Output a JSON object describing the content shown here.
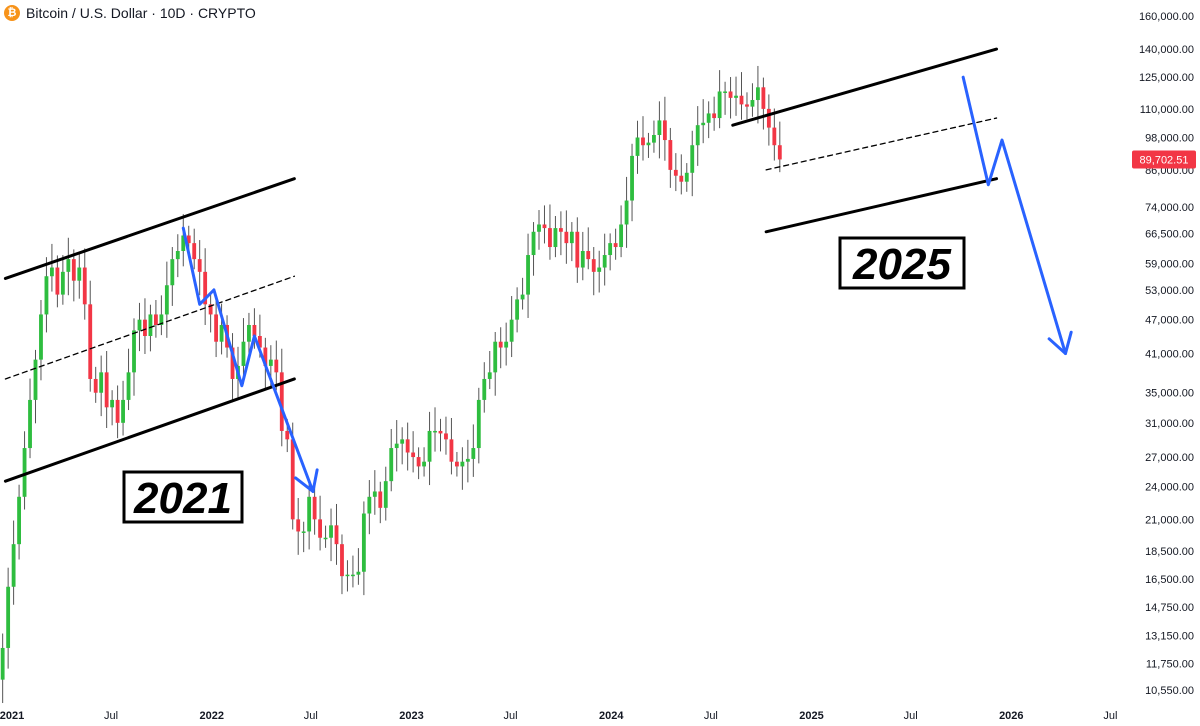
{
  "header": {
    "symbol": "Bitcoin",
    "quote": "U.S. Dollar",
    "interval": "10D",
    "exchange": "CRYPTO",
    "title": "Bitcoin / U.S. Dollar · 10D · CRYPTO",
    "icon": "bitcoin-icon"
  },
  "price_axis": {
    "labels": [
      "160,000.00",
      "140,000.00",
      "125,000.00",
      "110,000.00",
      "98,000.00",
      "86,000.00",
      "74,000.00",
      "66,500.00",
      "59,000.00",
      "53,000.00",
      "47,000.00",
      "41,000.00",
      "35,000.00",
      "31,000.00",
      "27,000.00",
      "24,000.00",
      "21,000.00",
      "18,500.00",
      "16,500.00",
      "14,750.00",
      "13,150.00",
      "11,750.00",
      "10,550.00"
    ],
    "last_price": "89,702.51",
    "last_price_color": "#f23645"
  },
  "time_axis": {
    "labels": [
      "2021",
      "Jul",
      "2022",
      "Jul",
      "2023",
      "Jul",
      "2024",
      "Jul",
      "2025",
      "Jul",
      "2026",
      "Jul"
    ],
    "bold_labels": [
      "2021",
      "2022",
      "2023",
      "2024",
      "2025",
      "2026"
    ]
  },
  "annotations": {
    "label_2021": "2021",
    "label_2025": "2025"
  },
  "colors": {
    "up": "#22ab94",
    "up_bright": "#26a69a",
    "candle_up": "#2ebd3f",
    "candle_down": "#f23645",
    "arrow": "#2962ff",
    "channel": "#000000"
  },
  "chart_data": {
    "type": "candlestick",
    "title": "Bitcoin / U.S. Dollar · 10D · CRYPTO",
    "y_scale": "log",
    "ylim": [
      10000,
      165000
    ],
    "x_range": [
      "2020-12-01",
      "2026-08-15"
    ],
    "interval_days": 10,
    "last_close": 89702.51,
    "closes": [
      11000,
      12500,
      16000,
      19000,
      23000,
      28000,
      34000,
      40000,
      48000,
      56000,
      58000,
      52000,
      57000,
      60000,
      55000,
      58000,
      50000,
      37000,
      35000,
      38000,
      33000,
      34000,
      31000,
      34000,
      38000,
      45000,
      47000,
      44000,
      48000,
      46000,
      48000,
      54000,
      60000,
      62000,
      66000,
      64000,
      60000,
      57000,
      50000,
      48000,
      43000,
      46000,
      42000,
      37000,
      39000,
      43000,
      46000,
      44000,
      42000,
      39000,
      40000,
      38000,
      30000,
      29000,
      21000,
      20000,
      20000,
      23000,
      21000,
      19500,
      19500,
      20500,
      19000,
      16700,
      16800,
      16800,
      17000,
      21500,
      23000,
      23500,
      22000,
      24500,
      28000,
      28500,
      29000,
      27500,
      27000,
      26000,
      26500,
      30000,
      30000,
      29700,
      29000,
      26500,
      26000,
      26500,
      26800,
      28000,
      34000,
      37000,
      38000,
      43000,
      42000,
      43000,
      47000,
      51000,
      52000,
      61000,
      67000,
      69000,
      68000,
      63000,
      68000,
      67000,
      64000,
      67000,
      58000,
      62000,
      60000,
      57000,
      58000,
      61000,
      64000,
      63000,
      69000,
      76000,
      91000,
      98000,
      95000,
      96000,
      99000,
      105000,
      97000,
      86000,
      84000,
      82000,
      85000,
      95000,
      103000,
      104000,
      108000,
      106000,
      118000,
      118000,
      115000,
      116000,
      112000,
      111000,
      114000,
      120000,
      110000,
      102000,
      95000,
      89702.51
    ],
    "channel_2021": {
      "upper": [
        {
          "date": "2020-12-20",
          "price": 55500
        },
        {
          "date": "2022-06-01",
          "price": 83000
        }
      ],
      "lower": [
        {
          "date": "2020-12-20",
          "price": 24500
        },
        {
          "date": "2022-06-01",
          "price": 37000
        }
      ],
      "mid": [
        {
          "date": "2020-12-20",
          "price": 37000
        },
        {
          "date": "2022-06-01",
          "price": 56000
        }
      ]
    },
    "channel_2025": {
      "upper": [
        {
          "date": "2024-08-10",
          "price": 103000
        },
        {
          "date": "2025-12-05",
          "price": 140000
        }
      ],
      "lower": [
        {
          "date": "2024-10-10",
          "price": 67000
        },
        {
          "date": "2025-12-05",
          "price": 83000
        }
      ],
      "mid": [
        {
          "date": "2024-10-10",
          "price": 86000
        },
        {
          "date": "2025-12-05",
          "price": 106000
        }
      ]
    },
    "arrows": [
      [
        {
          "date": "2021-11-10",
          "price": 68000
        },
        {
          "date": "2021-12-10",
          "price": 50000
        },
        {
          "date": "2022-01-05",
          "price": 53000
        },
        {
          "date": "2022-02-25",
          "price": 36000
        },
        {
          "date": "2022-03-20",
          "price": 44000
        },
        {
          "date": "2022-07-05",
          "price": 23500
        }
      ],
      [
        {
          "date": "2025-10-05",
          "price": 125000
        },
        {
          "date": "2025-11-20",
          "price": 81000
        },
        {
          "date": "2025-12-15",
          "price": 97000
        },
        {
          "date": "2026-04-10",
          "price": 41000
        }
      ]
    ]
  }
}
